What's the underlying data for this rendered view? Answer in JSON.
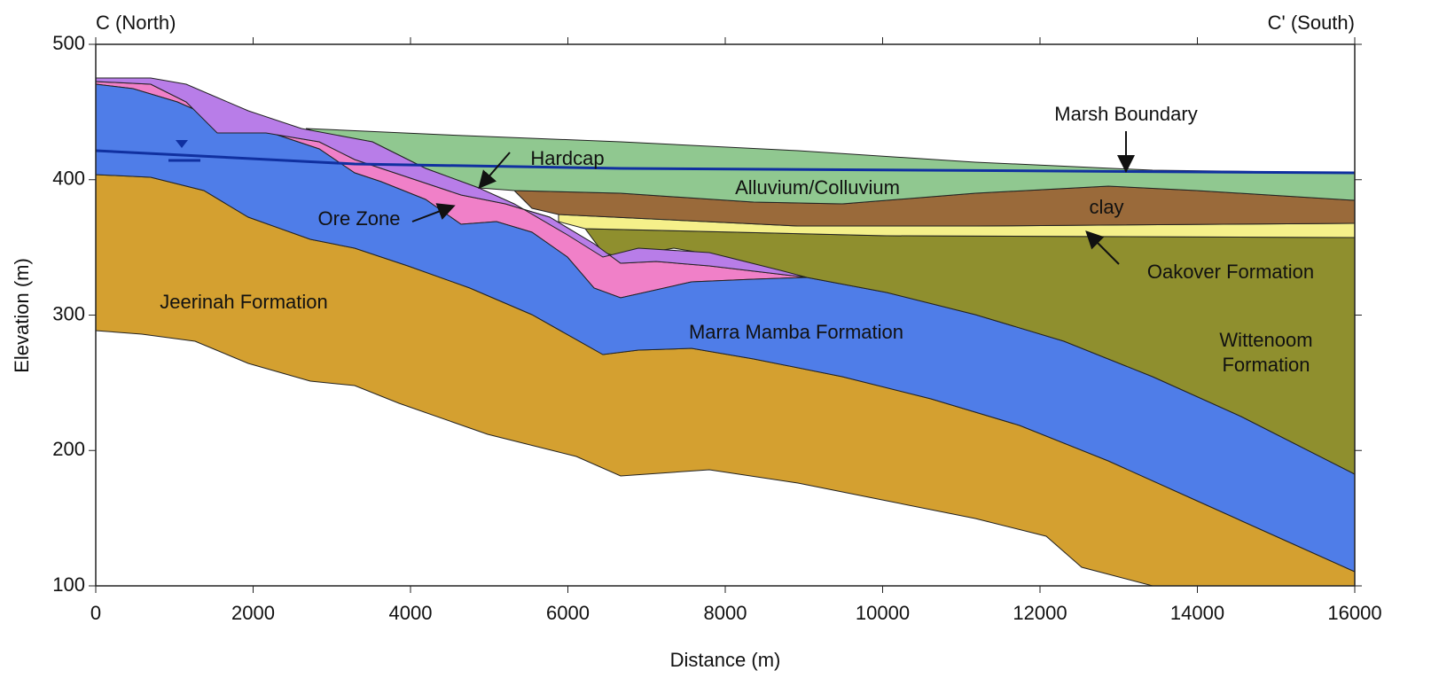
{
  "header": {
    "left": "C (North)",
    "right": "C' (South)"
  },
  "axes": {
    "x_label": "Distance (m)",
    "y_label": "Elevation (m)",
    "xlim": [
      0,
      16000
    ],
    "ylim": [
      100,
      500
    ],
    "xticks": [
      0,
      2000,
      4000,
      6000,
      8000,
      10000,
      12000,
      14000,
      16000
    ],
    "yticks": [
      100,
      200,
      300,
      400,
      500
    ]
  },
  "labels": {
    "marsh": "Marsh Boundary",
    "hardcap": "Hardcap",
    "alluvium": "Alluvium/Colluvium",
    "clay": "clay",
    "ore": "Ore Zone",
    "oakover": "Oakover Formation",
    "jeerinah": "Jeerinah Formation",
    "marra": "Marra Mamba Formation",
    "wittenoom": [
      "Wittenoom",
      "Formation"
    ]
  }
}
